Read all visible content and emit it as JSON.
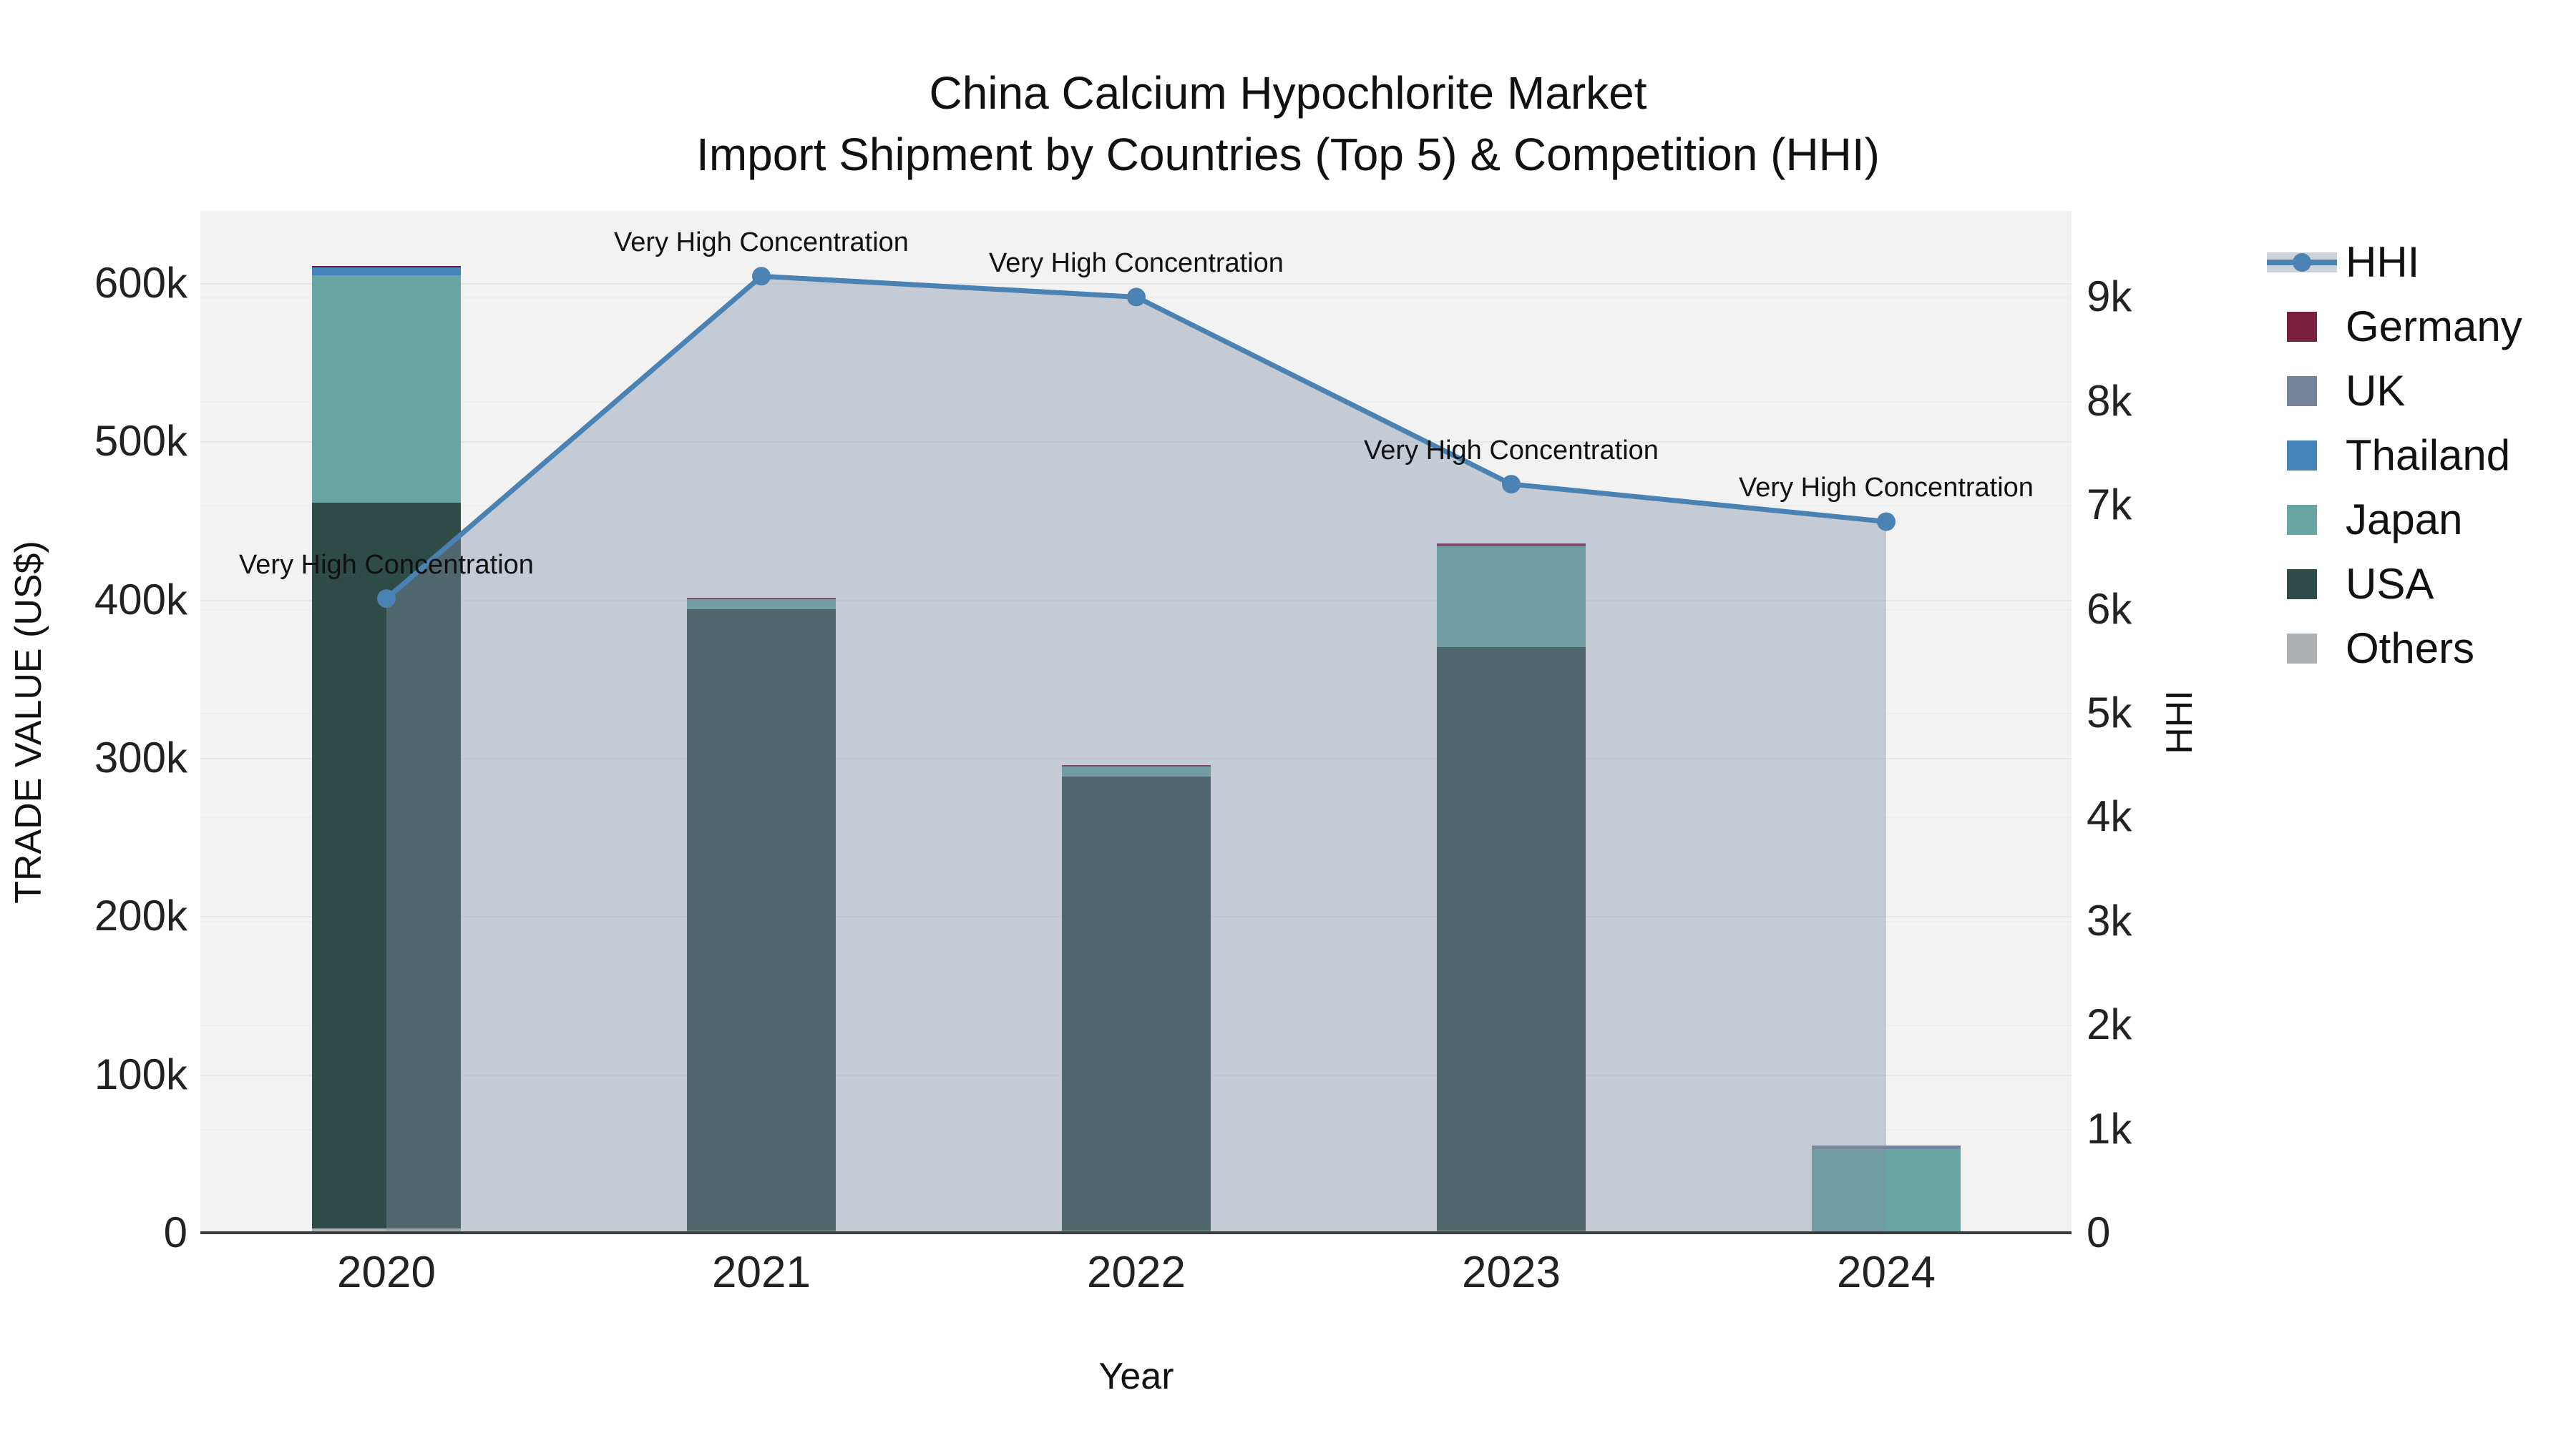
{
  "title": {
    "line1": "China Calcium Hypochlorite Market",
    "line2": "Import Shipment by Countries (Top 5) & Competition (HHI)"
  },
  "axes": {
    "x": {
      "title": "Year",
      "ticks": [
        "2020",
        "2021",
        "2022",
        "2023",
        "2024"
      ]
    },
    "y_left": {
      "title": "TRADE VALUE (US$)",
      "ticks": [
        "0",
        "100k",
        "200k",
        "300k",
        "400k",
        "500k",
        "600k"
      ],
      "tick_step": 100000
    },
    "y_right": {
      "title": "HHI",
      "ticks": [
        "0",
        "1k",
        "2k",
        "3k",
        "4k",
        "5k",
        "6k",
        "7k",
        "8k",
        "9k"
      ],
      "tick_step": 1000
    }
  },
  "legend": {
    "items": [
      {
        "label": "HHI",
        "type": "line",
        "color": "#4a82b4"
      },
      {
        "label": "Germany",
        "type": "swatch",
        "color": "#7a1f3e"
      },
      {
        "label": "UK",
        "type": "swatch",
        "color": "#75849b"
      },
      {
        "label": "Thailand",
        "type": "swatch",
        "color": "#4583bd"
      },
      {
        "label": "Japan",
        "type": "swatch",
        "color": "#68a5a3"
      },
      {
        "label": "USA",
        "type": "swatch",
        "color": "#2e4b47"
      },
      {
        "label": "Others",
        "type": "swatch",
        "color": "#aeb1b4"
      }
    ]
  },
  "chart_data": {
    "type": "bar",
    "stacked": true,
    "categories": [
      "2020",
      "2021",
      "2022",
      "2023",
      "2024"
    ],
    "series": [
      {
        "name": "Germany",
        "color": "#7a1f3e",
        "values": [
          900,
          900,
          900,
          1800,
          0
        ]
      },
      {
        "name": "UK",
        "color": "#75849b",
        "values": [
          0,
          0,
          0,
          0,
          2300
        ]
      },
      {
        "name": "Thailand",
        "color": "#4583bd",
        "values": [
          5000,
          0,
          0,
          0,
          0
        ]
      },
      {
        "name": "Japan",
        "color": "#68a5a3",
        "values": [
          143700,
          6300,
          6300,
          63700,
          52900
        ]
      },
      {
        "name": "USA",
        "color": "#2e4b47",
        "values": [
          458600,
          392600,
          286900,
          368700,
          0
        ]
      },
      {
        "name": "Others",
        "color": "#aeb1b4",
        "values": [
          2700,
          1400,
          1400,
          1400,
          0
        ]
      }
    ],
    "bar_totals": [
      610900,
      401200,
      295500,
      435600,
      55200
    ],
    "line_series": [
      {
        "name": "HHI",
        "axis": "right",
        "color": "#4a82b4",
        "area_fill": "rgba(130,145,168,0.4)",
        "values": [
          6100,
          9200,
          9000,
          7200,
          6840
        ]
      }
    ],
    "title": "China Calcium Hypochlorite Market — Import Shipment by Countries (Top 5) & Competition (HHI)",
    "xlabel": "Year",
    "ylabel": "TRADE VALUE (US$)",
    "ylabel_right": "HHI",
    "ylim_left": [
      0,
      645000
    ],
    "ylim_right": [
      0,
      9830
    ],
    "grid": true,
    "legend_position": "right",
    "annotations": [
      {
        "x": "2020",
        "text": "Very High Concentration"
      },
      {
        "x": "2021",
        "text": "Very High Concentration"
      },
      {
        "x": "2022",
        "text": "Very High Concentration"
      },
      {
        "x": "2023",
        "text": "Very High Concentration"
      },
      {
        "x": "2024",
        "text": "Very High Concentration"
      }
    ]
  }
}
